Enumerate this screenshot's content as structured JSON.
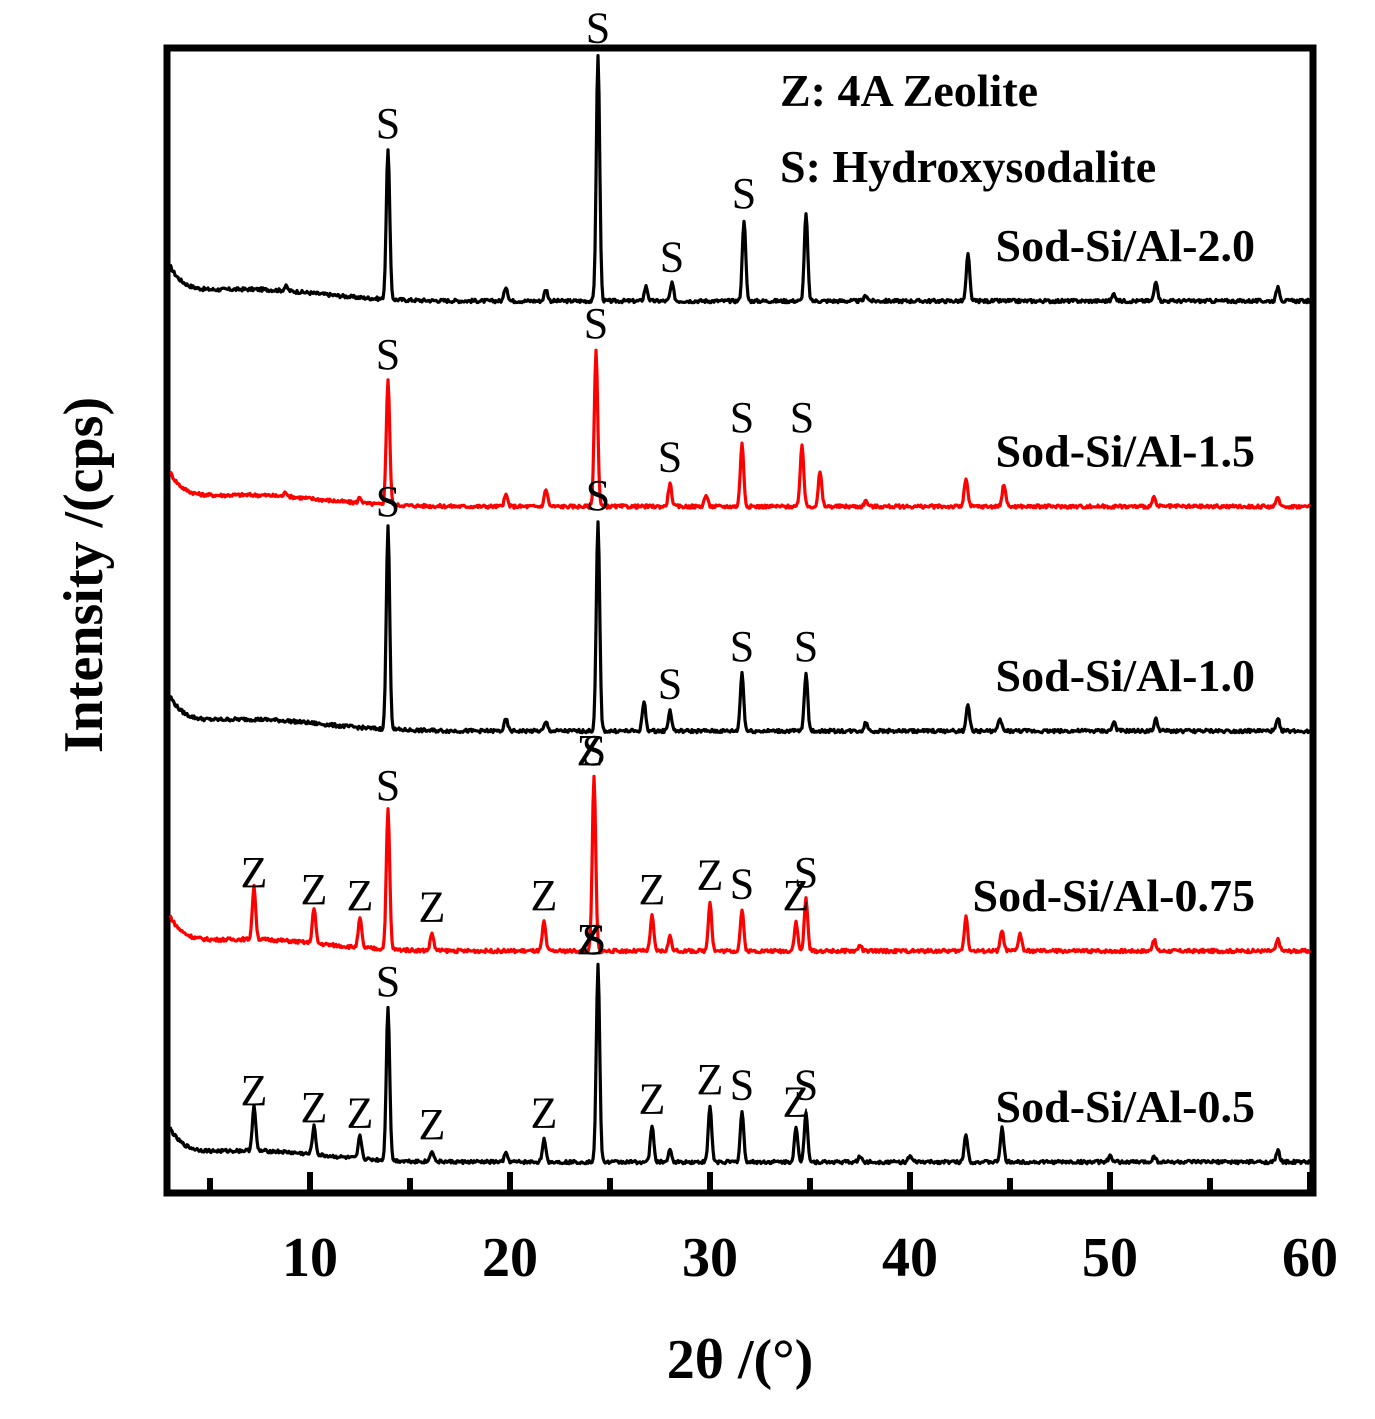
{
  "chart_data": {
    "type": "line",
    "xlabel": "2θ /(°)",
    "ylabel": "Intensity /(cps)",
    "xlim": [
      3,
      60
    ],
    "xticks": [
      10,
      20,
      30,
      40,
      50,
      60
    ],
    "legend": [
      {
        "text": "Z: 4A Zeolite"
      },
      {
        "text": "S: Hydroxysodalite"
      }
    ],
    "series": [
      {
        "name": "Sod-Si/Al-2.0",
        "color": "#000000",
        "baseline": 0.1,
        "background": 0.04,
        "peaks": [
          [
            8.8,
            0.015
          ],
          [
            13.9,
            0.52
          ],
          [
            19.8,
            0.05
          ],
          [
            21.8,
            0.04
          ],
          [
            24.4,
            0.85
          ],
          [
            26.8,
            0.05
          ],
          [
            28.1,
            0.06
          ],
          [
            31.7,
            0.28
          ],
          [
            34.8,
            0.3
          ],
          [
            37.8,
            0.02
          ],
          [
            42.9,
            0.16
          ],
          [
            50.2,
            0.025
          ],
          [
            52.3,
            0.07
          ],
          [
            58.4,
            0.05
          ]
        ],
        "peak_labels": [
          {
            "text": "S",
            "x": 13.9
          },
          {
            "text": "S",
            "x": 24.4
          },
          {
            "text": "S",
            "x": 28.1
          },
          {
            "text": "S",
            "x": 31.7
          }
        ]
      },
      {
        "name": "Sod-Si/Al-1.5",
        "color": "#ff0000",
        "baseline": 0.1,
        "background": 0.04,
        "peaks": [
          [
            8.8,
            0.015
          ],
          [
            12.5,
            0.02
          ],
          [
            13.9,
            0.44
          ],
          [
            19.8,
            0.04
          ],
          [
            21.8,
            0.06
          ],
          [
            24.3,
            0.55
          ],
          [
            28.0,
            0.08
          ],
          [
            29.8,
            0.04
          ],
          [
            31.6,
            0.22
          ],
          [
            34.6,
            0.22
          ],
          [
            35.5,
            0.12
          ],
          [
            37.8,
            0.02
          ],
          [
            42.8,
            0.1
          ],
          [
            44.7,
            0.08
          ],
          [
            52.2,
            0.03
          ],
          [
            58.4,
            0.03
          ]
        ],
        "peak_labels": [
          {
            "text": "S",
            "x": 13.9
          },
          {
            "text": "S",
            "x": 24.3
          },
          {
            "text": "S",
            "x": 28.0
          },
          {
            "text": "S",
            "x": 31.6
          },
          {
            "text": "S",
            "x": 34.6
          }
        ]
      },
      {
        "name": "Sod-Si/Al-1.0",
        "color": "#000000",
        "baseline": 0.1,
        "background": 0.04,
        "peaks": [
          [
            13.9,
            0.7
          ],
          [
            19.8,
            0.04
          ],
          [
            21.8,
            0.03
          ],
          [
            24.4,
            0.72
          ],
          [
            26.7,
            0.1
          ],
          [
            28.0,
            0.07
          ],
          [
            31.6,
            0.2
          ],
          [
            34.8,
            0.2
          ],
          [
            37.8,
            0.03
          ],
          [
            42.9,
            0.09
          ],
          [
            44.5,
            0.04
          ],
          [
            50.2,
            0.03
          ],
          [
            52.3,
            0.04
          ],
          [
            58.4,
            0.04
          ]
        ],
        "peak_labels": [
          {
            "text": "S",
            "x": 13.9
          },
          {
            "text": "S",
            "x": 24.4
          },
          {
            "text": "S",
            "x": 28.0
          },
          {
            "text": "S",
            "x": 31.6
          },
          {
            "text": "S",
            "x": 34.8
          }
        ]
      },
      {
        "name": "Sod-Si/Al-0.75",
        "color": "#ff0000",
        "baseline": 0.1,
        "background": 0.04,
        "peaks": [
          [
            7.2,
            0.18
          ],
          [
            10.2,
            0.12
          ],
          [
            12.5,
            0.1
          ],
          [
            13.9,
            0.48
          ],
          [
            16.1,
            0.06
          ],
          [
            21.7,
            0.1
          ],
          [
            24.2,
            0.6
          ],
          [
            27.1,
            0.12
          ],
          [
            28.0,
            0.05
          ],
          [
            30.0,
            0.17
          ],
          [
            31.6,
            0.14
          ],
          [
            34.3,
            0.1
          ],
          [
            34.8,
            0.18
          ],
          [
            37.5,
            0.02
          ],
          [
            42.8,
            0.12
          ],
          [
            44.6,
            0.07
          ],
          [
            45.5,
            0.06
          ],
          [
            52.2,
            0.04
          ],
          [
            58.4,
            0.04
          ]
        ],
        "peak_labels": [
          {
            "text": "Z",
            "x": 7.2
          },
          {
            "text": "Z",
            "x": 10.2
          },
          {
            "text": "Z",
            "x": 12.5
          },
          {
            "text": "S",
            "x": 13.9
          },
          {
            "text": "Z",
            "x": 16.1
          },
          {
            "text": "Z",
            "x": 21.7
          },
          {
            "text": "Z",
            "x": 24.0
          },
          {
            "text": "S",
            "x": 24.2
          },
          {
            "text": "Z",
            "x": 27.1
          },
          {
            "text": "Z",
            "x": 30.0
          },
          {
            "text": "S",
            "x": 31.6
          },
          {
            "text": "Z",
            "x": 34.3
          },
          {
            "text": "S",
            "x": 34.8
          }
        ]
      },
      {
        "name": "Sod-Si/Al-0.5",
        "color": "#000000",
        "baseline": 0.1,
        "background": 0.04,
        "peaks": [
          [
            7.2,
            0.16
          ],
          [
            10.2,
            0.1
          ],
          [
            12.5,
            0.08
          ],
          [
            13.9,
            0.55
          ],
          [
            16.1,
            0.04
          ],
          [
            19.8,
            0.03
          ],
          [
            21.7,
            0.08
          ],
          [
            24.4,
            0.7
          ],
          [
            27.1,
            0.13
          ],
          [
            28.0,
            0.04
          ],
          [
            30.0,
            0.2
          ],
          [
            31.6,
            0.18
          ],
          [
            34.3,
            0.12
          ],
          [
            34.8,
            0.18
          ],
          [
            37.5,
            0.02
          ],
          [
            40.0,
            0.02
          ],
          [
            42.8,
            0.1
          ],
          [
            44.6,
            0.12
          ],
          [
            50.0,
            0.02
          ],
          [
            52.2,
            0.02
          ],
          [
            58.4,
            0.04
          ]
        ],
        "peak_labels": [
          {
            "text": "Z",
            "x": 7.2
          },
          {
            "text": "Z",
            "x": 10.2
          },
          {
            "text": "Z",
            "x": 12.5
          },
          {
            "text": "S",
            "x": 13.9
          },
          {
            "text": "Z",
            "x": 16.1
          },
          {
            "text": "Z",
            "x": 21.7
          },
          {
            "text": "Z",
            "x": 24.0
          },
          {
            "text": "S",
            "x": 24.2
          },
          {
            "text": "Z",
            "x": 27.1
          },
          {
            "text": "Z",
            "x": 30.0
          },
          {
            "text": "S",
            "x": 31.6
          },
          {
            "text": "Z",
            "x": 34.3
          },
          {
            "text": "S",
            "x": 34.8
          }
        ]
      }
    ]
  }
}
